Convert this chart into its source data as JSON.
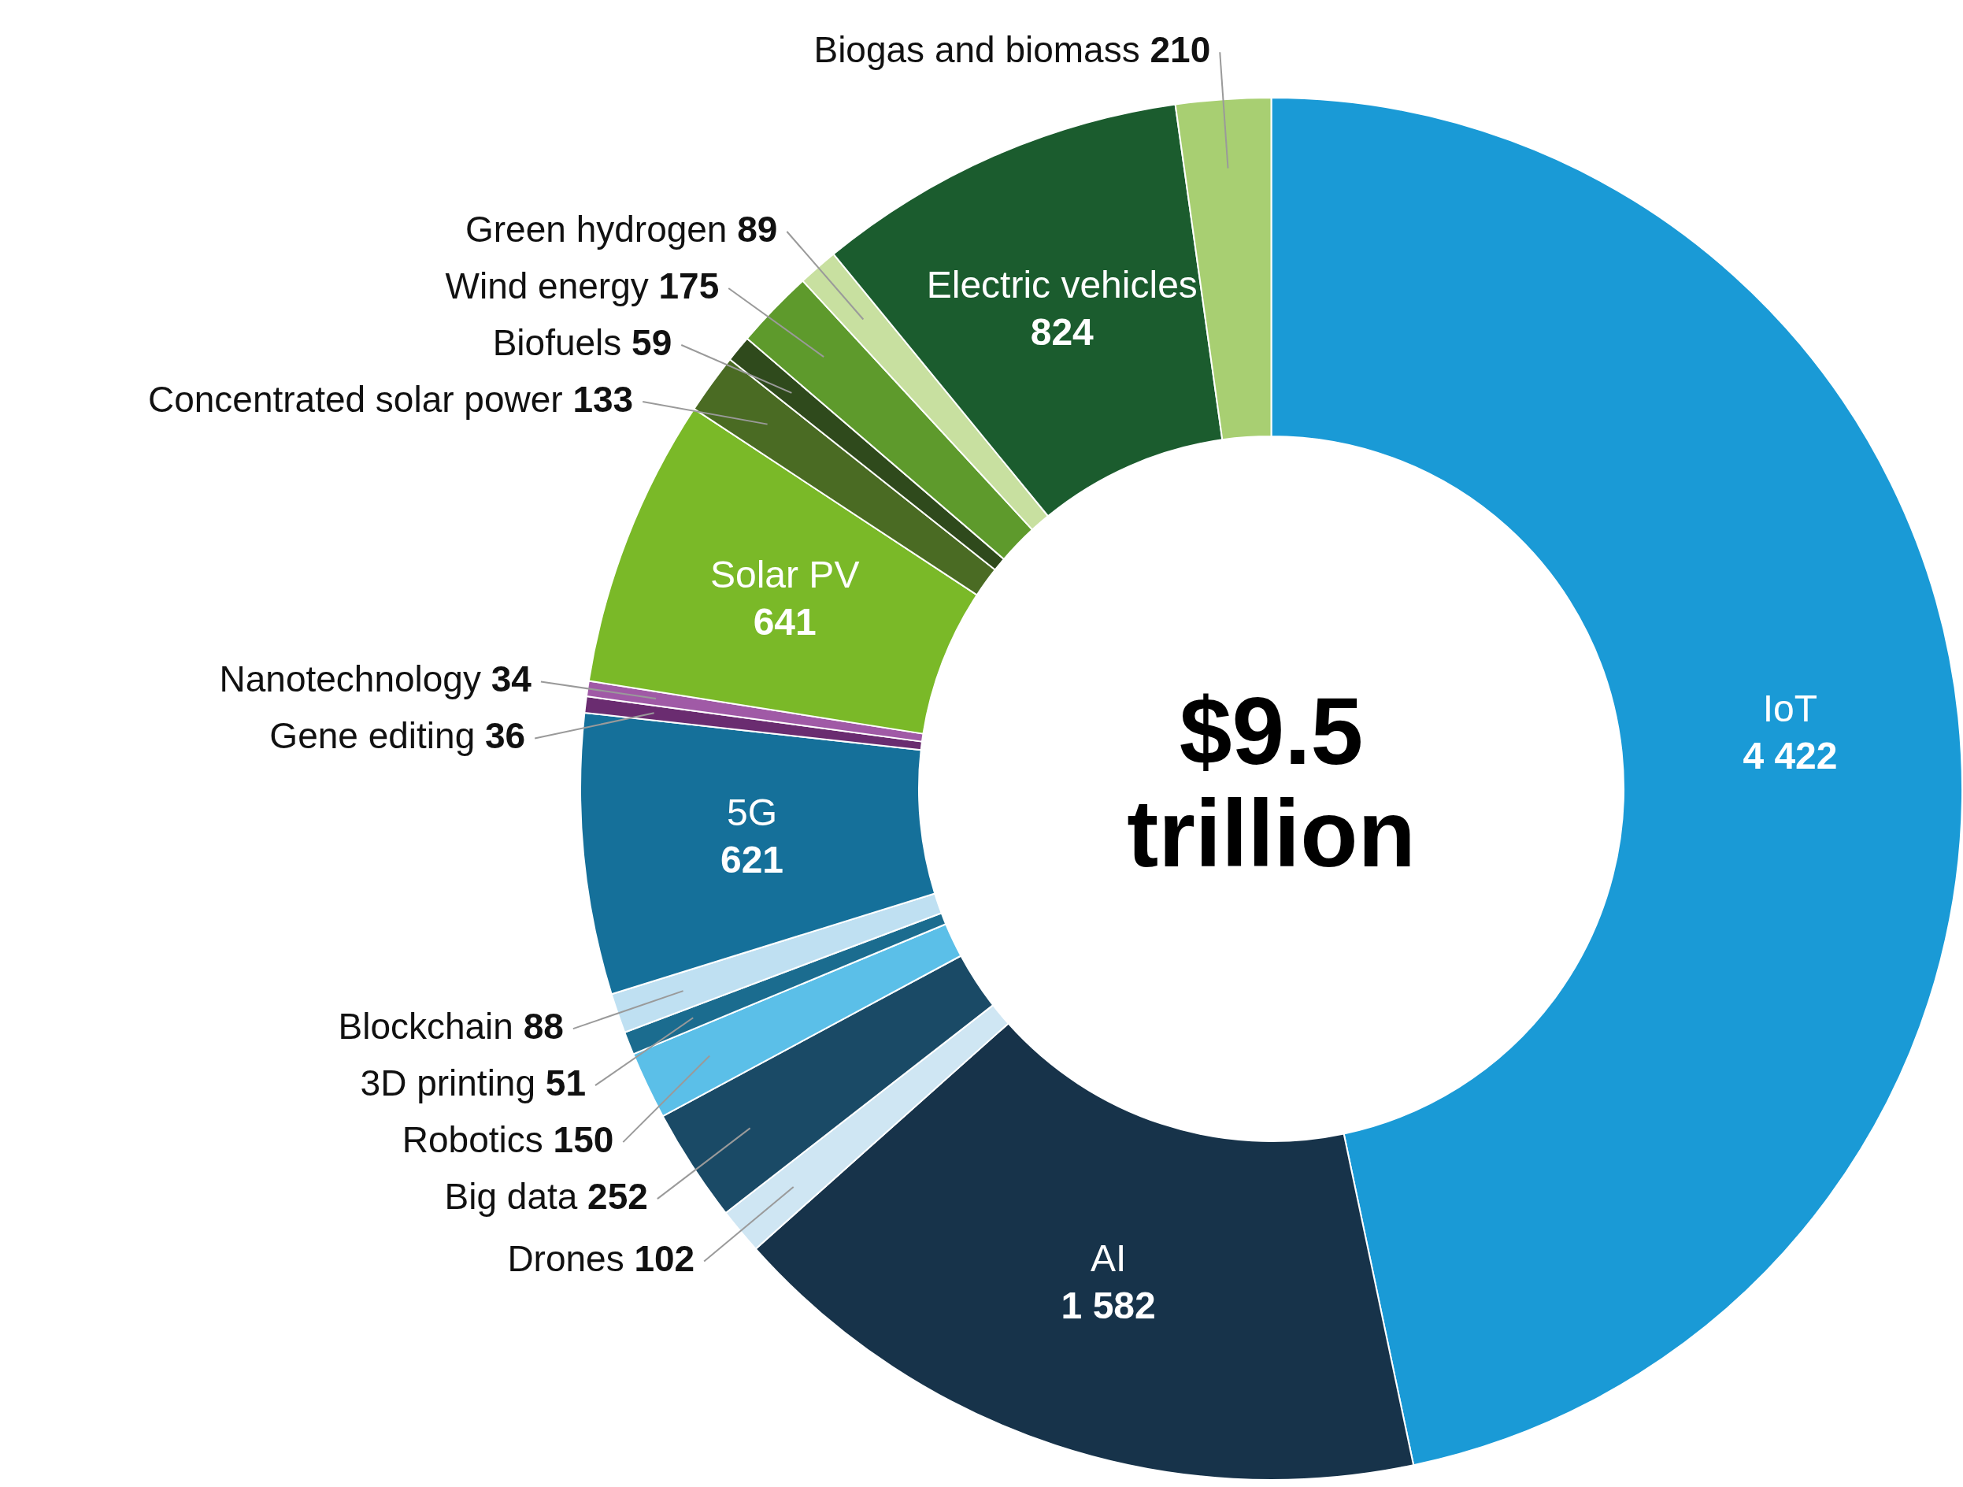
{
  "chart_data": {
    "type": "donut",
    "categories": [
      "IoT",
      "AI",
      "Drones",
      "Big data",
      "Robotics",
      "3D printing",
      "Blockchain",
      "5G",
      "Gene editing",
      "Nanotechnology",
      "Solar PV",
      "Concentrated solar power",
      "Biofuels",
      "Wind energy",
      "Green hydrogen",
      "Electric vehicles",
      "Biogas and biomass"
    ],
    "values": [
      4422,
      1582,
      102,
      252,
      150,
      51,
      88,
      621,
      36,
      34,
      641,
      133,
      59,
      175,
      89,
      824,
      210
    ],
    "value_labels": [
      "4 422",
      "1 582",
      "102",
      "252",
      "150",
      "51",
      "88",
      "621",
      "36",
      "34",
      "641",
      "133",
      "59",
      "175",
      "89",
      "824",
      "210"
    ],
    "colors": [
      "#1a9ad6",
      "#17334a",
      "#cfe6f3",
      "#1a4a66",
      "#5bbfe8",
      "#1b6c8f",
      "#bfe0f2",
      "#15709a",
      "#6a2c70",
      "#a05aa6",
      "#7ab928",
      "#4a6b23",
      "#2f4a1c",
      "#5e9a2c",
      "#c8e0a0",
      "#1b5c2e",
      "#a8cf72"
    ],
    "annotations": [
      "$9.5 trillion"
    ],
    "legend": false
  }
}
